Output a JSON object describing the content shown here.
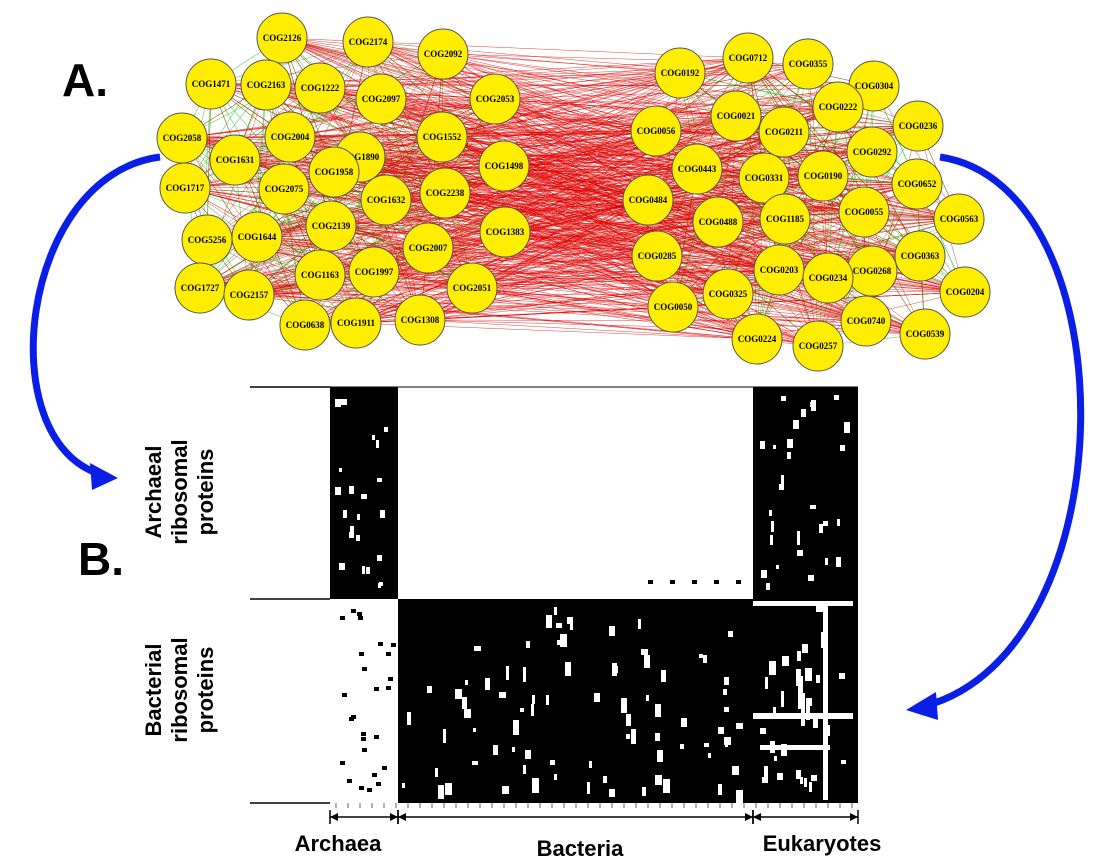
{
  "panel_a_label": "A.",
  "panel_b_label": "B.",
  "network": {
    "edge_colors": {
      "between": "#e00000",
      "within": "#33cc33"
    },
    "node_color": "#ffee00",
    "left_cluster": [
      "COG2126",
      "COG2174",
      "COG2092",
      "COG1471",
      "COG2163",
      "COG1222",
      "COG2097",
      "COG2053",
      "COG2058",
      "COG2004",
      "COG1552",
      "COG1631",
      "COG1890",
      "COG1498",
      "COG1717",
      "COG2075",
      "COG1958",
      "COG1632",
      "COG2238",
      "COG5256",
      "COG1644",
      "COG2139",
      "COG1383",
      "COG2007",
      "COG1727",
      "COG2157",
      "COG1163",
      "COG1997",
      "COG2051",
      "COG0638",
      "COG1911",
      "COG1308"
    ],
    "right_cluster": [
      "COG0192",
      "COG0712",
      "COG0355",
      "COG0304",
      "COG0222",
      "COG0021",
      "COG0236",
      "COG0056",
      "COG0211",
      "COG0292",
      "COG0443",
      "COG0331",
      "COG0190",
      "COG0484",
      "COG0652",
      "COG0488",
      "COG1185",
      "COG0055",
      "COG0563",
      "COG0285",
      "COG0203",
      "COG0268",
      "COG0363",
      "COG0234",
      "COG0050",
      "COG0325",
      "COG0204",
      "COG0740",
      "COG0539",
      "COG0224",
      "COG0257"
    ]
  },
  "matrix": {
    "row_group_top": "Archaeal ribosomal proteins",
    "row_group_top_lines": [
      "Archaeal",
      "ribosomal",
      "proteins"
    ],
    "row_group_bottom_lines": [
      "Bacterial",
      "ribosomal",
      "proteins"
    ],
    "column_groups": [
      "Archaea",
      "Bacteria",
      "Eukaryotes"
    ]
  },
  "arrow_color": "#0a1ee6"
}
